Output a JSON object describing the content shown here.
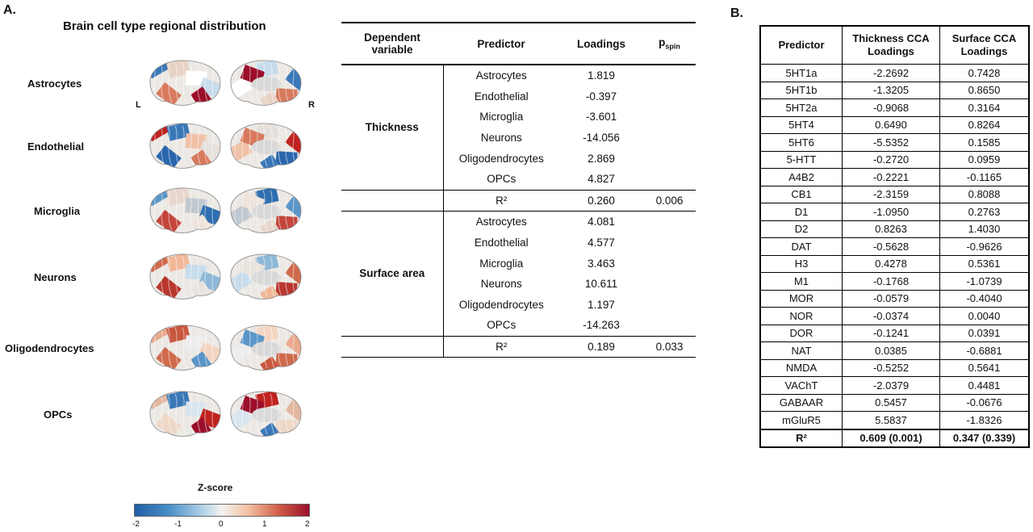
{
  "panels": {
    "a": "A.",
    "b": "B."
  },
  "brain": {
    "title": "Brain cell type regional distribution",
    "left_letter": "L",
    "right_letter": "R",
    "rows": [
      "Astrocytes",
      "Endothelial",
      "Microglia",
      "Neurons",
      "Oligodendrocytes",
      "OPCs"
    ]
  },
  "colorbar": {
    "title": "Z-score",
    "ticks": [
      "-2",
      "-1",
      "0",
      "1",
      "2"
    ],
    "colors": [
      "#1f5fa6",
      "#4a90c8",
      "#f4f2ef",
      "#d2604a",
      "#9b0f2a"
    ]
  },
  "tableA": {
    "headers": {
      "dep": "Dependent variable",
      "predictor": "Predictor",
      "loadings": "Loadings",
      "p": "p",
      "p_sub": "spin"
    },
    "thickness": {
      "label": "Thickness",
      "rows": [
        {
          "predictor": "Astrocytes",
          "loading": "1.819"
        },
        {
          "predictor": "Endothelial",
          "loading": "-0.397"
        },
        {
          "predictor": "Microglia",
          "loading": "-3.601"
        },
        {
          "predictor": "Neurons",
          "loading": "-14.056"
        },
        {
          "predictor": "Oligodendrocytes",
          "loading": "2.869"
        },
        {
          "predictor": "OPCs",
          "loading": "4.827"
        }
      ],
      "r2_label": "R²",
      "r2": "0.260",
      "p": "0.006"
    },
    "surface": {
      "label": "Surface area",
      "rows": [
        {
          "predictor": "Astrocytes",
          "loading": "4.081"
        },
        {
          "predictor": "Endothelial",
          "loading": "4.577"
        },
        {
          "predictor": "Microglia",
          "loading": "3.463"
        },
        {
          "predictor": "Neurons",
          "loading": "10.611"
        },
        {
          "predictor": "Oligodendrocytes",
          "loading": "1.197"
        },
        {
          "predictor": "OPCs",
          "loading": "-14.263"
        }
      ],
      "r2_label": "R²",
      "r2": "0.189",
      "p": "0.033"
    }
  },
  "tableB": {
    "headers": {
      "predictor": "Predictor",
      "thickness": "Thickness CCA Loadings",
      "surface": "Surface CCA Loadings"
    },
    "rows": [
      [
        "5HT1a",
        "-2.2692",
        "0.7428"
      ],
      [
        "5HT1b",
        "-1.3205",
        "0.8650"
      ],
      [
        "5HT2a",
        "-0.9068",
        "0.3164"
      ],
      [
        "5HT4",
        "0.6490",
        "0.8264"
      ],
      [
        "5HT6",
        "-5.5352",
        "0.1585"
      ],
      [
        "5-HTT",
        "-0.2720",
        "0.0959"
      ],
      [
        "A4B2",
        "-0.2221",
        "-0.1165"
      ],
      [
        "CB1",
        "-2.3159",
        "0.8088"
      ],
      [
        "D1",
        "-1.0950",
        "0.2763"
      ],
      [
        "D2",
        "0.8263",
        "1.4030"
      ],
      [
        "DAT",
        "-0.5628",
        "-0.9626"
      ],
      [
        "H3",
        "0.4278",
        "0.5361"
      ],
      [
        "M1",
        "-0.1768",
        "-1.0739"
      ],
      [
        "MOR",
        "-0.0579",
        "-0.4040"
      ],
      [
        "NOR",
        "-0.0374",
        "0.0040"
      ],
      [
        "DOR",
        "-0.1241",
        "0.0391"
      ],
      [
        "NAT",
        "0.0385",
        "-0.6881"
      ],
      [
        "NMDA",
        "-0.5252",
        "0.5641"
      ],
      [
        "VAChT",
        "-2.0379",
        "0.4481"
      ],
      [
        "GABAAR",
        "0.5457",
        "-0.0676"
      ],
      [
        "mGluR5",
        "5.5837",
        "-1.8326"
      ]
    ],
    "r2": [
      "R²",
      "0.609 (0.001)",
      "0.347 (0.339)"
    ]
  }
}
